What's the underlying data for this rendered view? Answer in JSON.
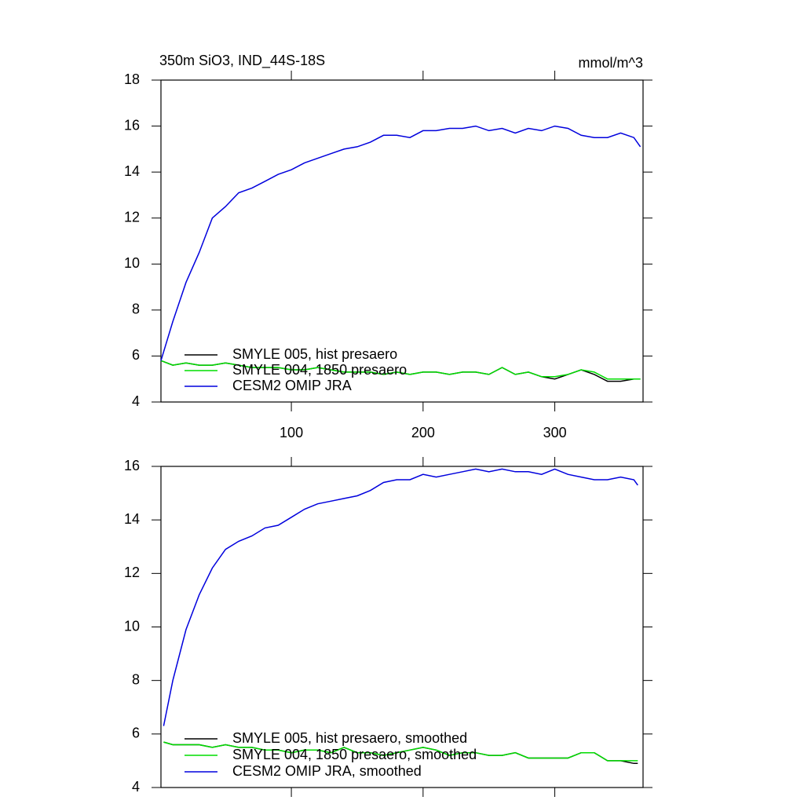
{
  "chart_data": [
    {
      "type": "line",
      "title": "350m SiO3, IND_44S-18S",
      "units": "mmol/m^3",
      "x": [
        1,
        10,
        20,
        30,
        40,
        50,
        60,
        70,
        80,
        90,
        100,
        110,
        120,
        130,
        140,
        150,
        160,
        170,
        180,
        190,
        200,
        210,
        220,
        230,
        240,
        250,
        260,
        270,
        280,
        290,
        300,
        310,
        320,
        330,
        340,
        350,
        360,
        365
      ],
      "xlim": [
        1,
        367
      ],
      "xticks": [
        100,
        200,
        300
      ],
      "xtick_labels_shown": true,
      "ylim": [
        4,
        18
      ],
      "yticks": [
        4,
        6,
        8,
        10,
        12,
        14,
        16,
        18
      ],
      "series": [
        {
          "name": "SMYLE 005, hist presaero",
          "color": "#000000",
          "values": [
            5.8,
            5.6,
            5.7,
            5.6,
            5.6,
            5.7,
            5.6,
            5.5,
            5.5,
            5.5,
            5.4,
            5.4,
            5.5,
            5.4,
            5.3,
            5.3,
            5.3,
            5.2,
            5.3,
            5.2,
            5.3,
            5.3,
            5.2,
            5.3,
            5.3,
            5.2,
            5.5,
            5.2,
            5.3,
            5.1,
            5.0,
            5.2,
            5.4,
            5.2,
            4.9,
            4.9,
            5.0,
            5.0
          ]
        },
        {
          "name": "SMYLE 004, 1850 presaero",
          "color": "#00dd00",
          "values": [
            5.8,
            5.6,
            5.7,
            5.6,
            5.6,
            5.7,
            5.6,
            5.5,
            5.5,
            5.5,
            5.4,
            5.4,
            5.5,
            5.4,
            5.3,
            5.3,
            5.3,
            5.2,
            5.3,
            5.2,
            5.3,
            5.3,
            5.2,
            5.3,
            5.3,
            5.2,
            5.5,
            5.2,
            5.3,
            5.1,
            5.1,
            5.2,
            5.4,
            5.3,
            5.0,
            5.0,
            5.0,
            5.0
          ]
        },
        {
          "name": "CESM2 OMIP JRA",
          "color": "#0000dd",
          "values": [
            5.8,
            7.5,
            9.2,
            10.5,
            12.0,
            12.5,
            13.1,
            13.3,
            13.6,
            13.9,
            14.1,
            14.4,
            14.6,
            14.8,
            15.0,
            15.1,
            15.3,
            15.6,
            15.6,
            15.5,
            15.8,
            15.8,
            15.9,
            15.9,
            16.0,
            15.8,
            15.9,
            15.7,
            15.9,
            15.8,
            16.0,
            15.9,
            15.6,
            15.5,
            15.5,
            15.7,
            15.5,
            15.1
          ]
        }
      ]
    },
    {
      "type": "line",
      "x": [
        3,
        10,
        20,
        30,
        40,
        50,
        60,
        70,
        80,
        90,
        100,
        110,
        120,
        130,
        140,
        150,
        160,
        170,
        180,
        190,
        200,
        210,
        220,
        230,
        240,
        250,
        260,
        270,
        280,
        290,
        300,
        310,
        320,
        330,
        340,
        350,
        360,
        363
      ],
      "xlim": [
        1,
        367
      ],
      "xticks": [
        100,
        200,
        300
      ],
      "xtick_labels_shown": false,
      "ylim": [
        4,
        16
      ],
      "yticks": [
        4,
        6,
        8,
        10,
        12,
        14,
        16
      ],
      "series": [
        {
          "name": "SMYLE 005, hist presaero, smoothed",
          "color": "#000000",
          "values": [
            5.7,
            5.6,
            5.6,
            5.6,
            5.5,
            5.6,
            5.5,
            5.5,
            5.4,
            5.4,
            5.3,
            5.4,
            5.4,
            5.3,
            5.5,
            5.3,
            5.3,
            5.2,
            5.3,
            5.4,
            5.5,
            5.4,
            5.2,
            5.3,
            5.3,
            5.2,
            5.2,
            5.3,
            5.1,
            5.1,
            5.1,
            5.1,
            5.3,
            5.3,
            5.0,
            5.0,
            4.9,
            4.9
          ]
        },
        {
          "name": "SMYLE 004, 1850 presaero, smoothed",
          "color": "#00dd00",
          "values": [
            5.7,
            5.6,
            5.6,
            5.6,
            5.5,
            5.6,
            5.5,
            5.5,
            5.4,
            5.4,
            5.3,
            5.4,
            5.4,
            5.3,
            5.5,
            5.3,
            5.3,
            5.2,
            5.3,
            5.4,
            5.5,
            5.4,
            5.2,
            5.3,
            5.3,
            5.2,
            5.2,
            5.3,
            5.1,
            5.1,
            5.1,
            5.1,
            5.3,
            5.3,
            5.0,
            5.0,
            5.0,
            5.0
          ]
        },
        {
          "name": "CESM2 OMIP JRA, smoothed",
          "color": "#0000dd",
          "values": [
            6.3,
            8.0,
            9.9,
            11.2,
            12.2,
            12.9,
            13.2,
            13.4,
            13.7,
            13.8,
            14.1,
            14.4,
            14.6,
            14.7,
            14.8,
            14.9,
            15.1,
            15.4,
            15.5,
            15.5,
            15.7,
            15.6,
            15.7,
            15.8,
            15.9,
            15.8,
            15.9,
            15.8,
            15.8,
            15.7,
            15.9,
            15.7,
            15.6,
            15.5,
            15.5,
            15.6,
            15.5,
            15.3
          ]
        }
      ]
    }
  ]
}
